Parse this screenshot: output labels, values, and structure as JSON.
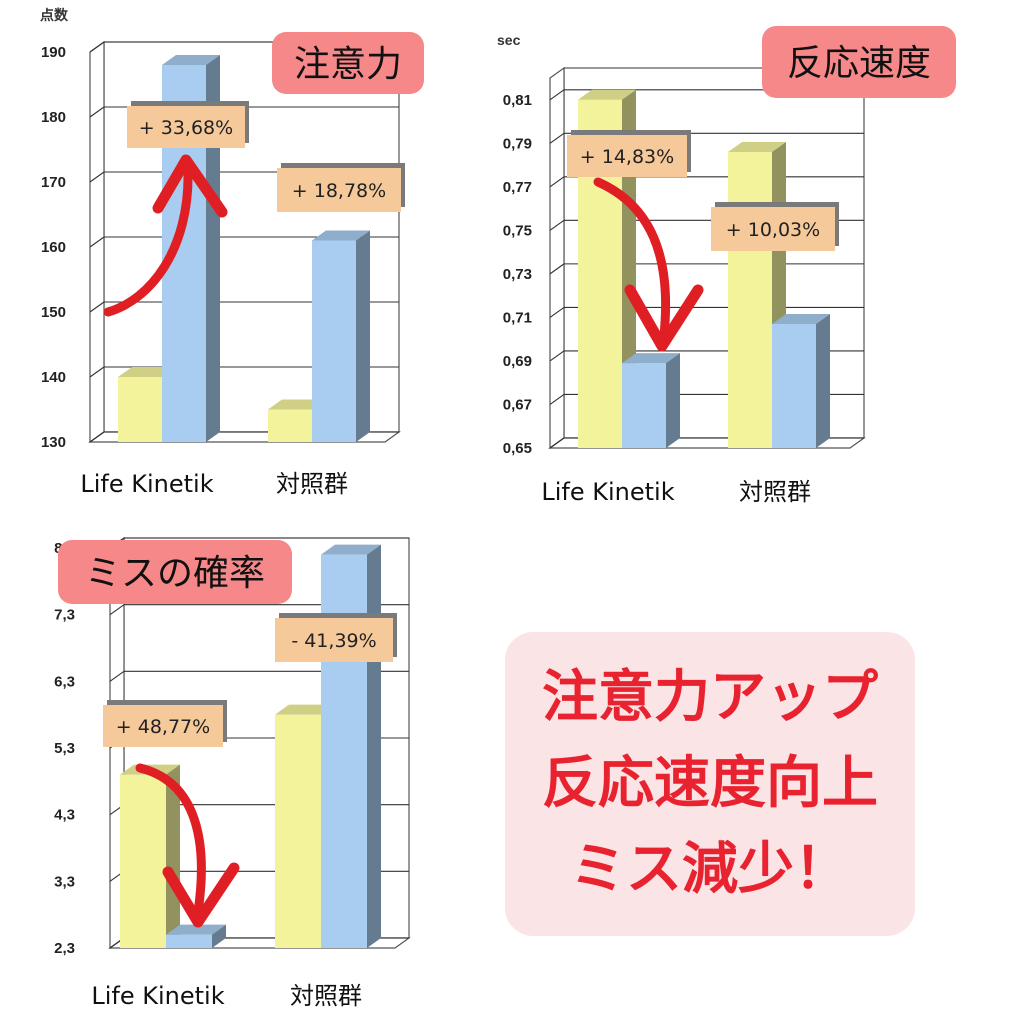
{
  "chart_data": [
    {
      "type": "bar",
      "title": "注意力",
      "unit_label": "点数",
      "categories": [
        "Life Kinetik",
        "対照群"
      ],
      "ylim": [
        130,
        190
      ],
      "yticks": [
        "130",
        "140",
        "150",
        "160",
        "170",
        "180",
        "190"
      ],
      "grid": true,
      "series": [
        {
          "color": "#f3f39c",
          "values": [
            140,
            135
          ]
        },
        {
          "color": "#a8cdf0",
          "values": [
            188,
            161
          ]
        }
      ],
      "annotations": [
        "+ 33,68%",
        "+ 18,78%"
      ],
      "arrow_direction": "up"
    },
    {
      "type": "bar",
      "title": "反応速度",
      "unit_label": "sec",
      "categories": [
        "Life Kinetik",
        "対照群"
      ],
      "ylim": [
        0.65,
        0.82
      ],
      "yticks": [
        "0,65",
        "0,67",
        "0,69",
        "0,71",
        "0,73",
        "0,75",
        "0,77",
        "0,79",
        "0,81"
      ],
      "grid": true,
      "series": [
        {
          "color": "#f3f39c",
          "values": [
            0.81,
            0.786
          ]
        },
        {
          "color": "#a8cdf0",
          "values": [
            0.689,
            0.707
          ]
        }
      ],
      "annotations": [
        "+ 14,83%",
        "+ 10,03%"
      ],
      "arrow_direction": "down"
    },
    {
      "type": "bar",
      "title": "ミスの確率",
      "unit_label": "",
      "categories": [
        "Life Kinetik",
        "対照群"
      ],
      "ylim": [
        2.3,
        8.3
      ],
      "yticks": [
        "2,3",
        "3,3",
        "4,3",
        "5,3",
        "6,3",
        "7,3",
        "8,3"
      ],
      "grid": true,
      "series": [
        {
          "color": "#f3f39c",
          "values": [
            4.9,
            5.8
          ]
        },
        {
          "color": "#a8cdf0",
          "values": [
            2.5,
            8.2
          ]
        }
      ],
      "annotations": [
        "+ 48,77%",
        "- 41,39%"
      ],
      "arrow_direction": "down"
    }
  ],
  "summary": {
    "lines": [
      "注意力アップ",
      "反応速度向上",
      "ミス減少！"
    ],
    "text_color": "#e8232f",
    "background": "#fbe4e6"
  },
  "colors": {
    "title_badge": "#f7888a",
    "annotation_box": "#f6c99a",
    "arrow": "#e01f24"
  }
}
